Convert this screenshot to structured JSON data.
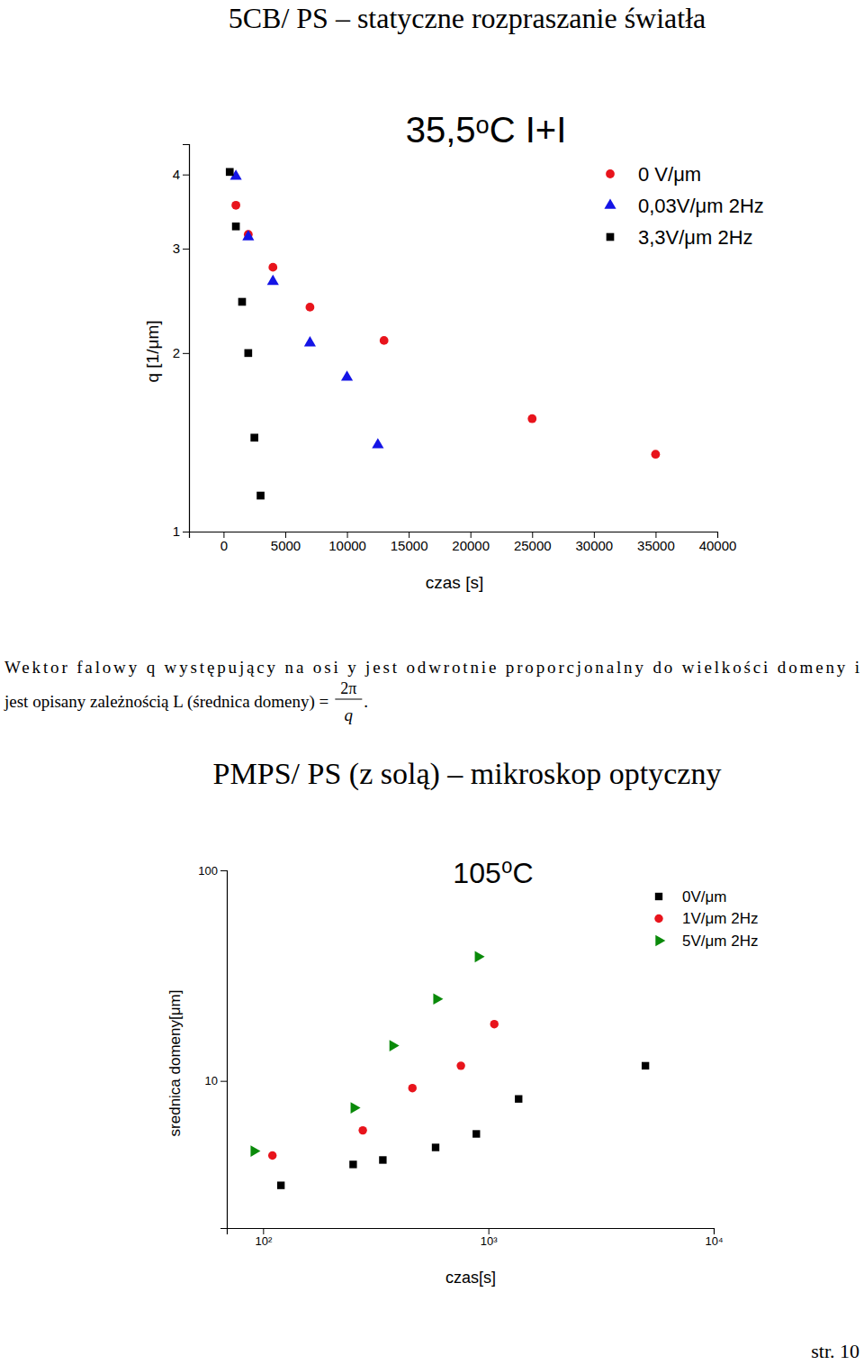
{
  "chart_data": [
    {
      "type": "scatter",
      "title": "35,5ᵒC I+I",
      "x_label": "czas [s]",
      "y_label": "q [1/μm]",
      "log": "y",
      "legend": "top-right",
      "xlim": [
        -2800,
        40000
      ],
      "xticks": [
        0,
        5000,
        10000,
        15000,
        20000,
        25000,
        30000,
        35000,
        40000
      ],
      "ylim": [
        1,
        4.5
      ],
      "yticks": [
        1,
        2,
        3,
        4
      ],
      "series": [
        {
          "name": "0 V/μm",
          "color": "#e8141c",
          "marker": "circle",
          "x": [
            1000,
            2000,
            4000,
            7000,
            13000,
            25000,
            35000
          ],
          "values": [
            3.55,
            3.17,
            2.79,
            2.39,
            2.1,
            1.55,
            1.35
          ]
        },
        {
          "name": "0,03V/μm 2Hz",
          "color": "#1414e6",
          "marker": "triangle",
          "x": [
            1000,
            2000,
            4000,
            7000,
            10000,
            12500
          ],
          "values": [
            3.97,
            3.14,
            2.64,
            2.08,
            1.82,
            1.4
          ]
        },
        {
          "name": "3,3V/μm 2Hz",
          "color": "#000000",
          "marker": "square",
          "x": [
            500,
            1000,
            1500,
            2000,
            2500,
            3000
          ],
          "values": [
            4.04,
            3.27,
            2.44,
            2.0,
            1.44,
            1.15
          ]
        }
      ]
    },
    {
      "type": "scatter",
      "title": "105⁰C",
      "x_label": "czas[s]",
      "y_label": "srednica domeny[μm]",
      "log": true,
      "legend": "top-right",
      "xlim": [
        69,
        10000
      ],
      "xticks": [
        {
          "value": 100,
          "label": "10²"
        },
        {
          "value": 1000,
          "label": "10³"
        },
        {
          "value": 10000,
          "label": "10⁴"
        }
      ],
      "ylim": [
        2,
        100
      ],
      "yticks": [
        10,
        100
      ],
      "series": [
        {
          "name": "0V/μm",
          "color": "#000000",
          "marker": "square",
          "x": [
            120,
            251,
            340,
            583,
            884,
            1362,
            4977
          ],
          "values": [
            3.19,
            4.01,
            4.21,
            4.83,
            5.6,
            8.21,
            11.8
          ]
        },
        {
          "name": "1V/μm 2Hz",
          "color": "#e8141c",
          "marker": "circle",
          "x": [
            110,
            277,
            460,
            755,
            1062
          ],
          "values": [
            4.42,
            5.82,
            9.24,
            11.8,
            18.6
          ]
        },
        {
          "name": "5V/μm 2Hz",
          "color": "#0a8a0a",
          "marker": "triangle-right",
          "x": [
            91,
            253,
            376,
            589,
            900
          ],
          "values": [
            4.64,
            7.45,
            14.7,
            24.5,
            38.9
          ]
        }
      ]
    }
  ],
  "page": {
    "heading_1": "5CB/ PS – statyczne rozpraszanie światła",
    "paragraph": [
      "Wektor falowy q występujący na osi y jest odwrotnie proporcjonalny do wielkości domeny i",
      "jest opisany zależnością L (średnica domeny) ="
    ],
    "formula": {
      "numerator": "2π",
      "denominator": "q",
      "end": "."
    },
    "heading_2": "PMPS/ PS (z solą) – mikroskop optyczny",
    "page_number": "str. 10"
  }
}
